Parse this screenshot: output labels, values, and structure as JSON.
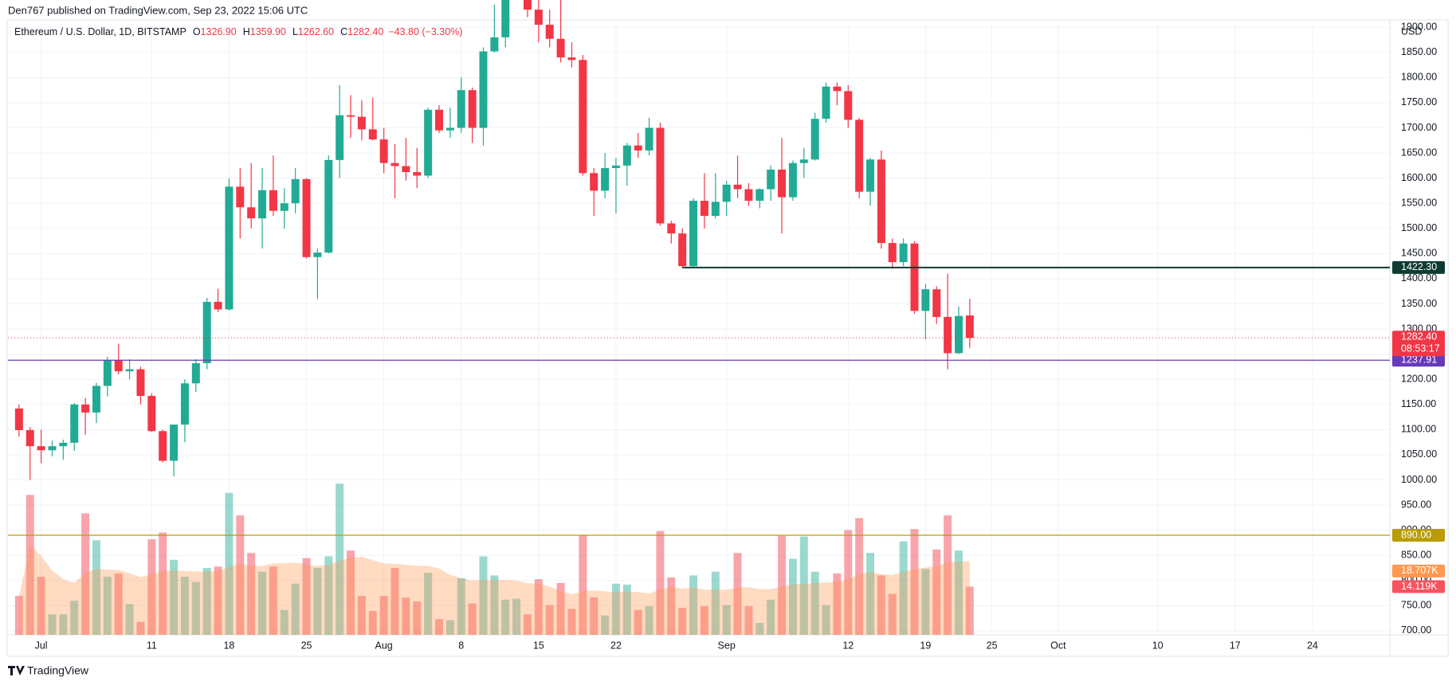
{
  "chart_data": {
    "type": "candlestick",
    "header": "Den767 published on TradingView.com, Sep 23, 2022 15:06 UTC",
    "symbol": "Ethereum / U.S. Dollar, 1D, BITSTAMP",
    "legend": [
      {
        "key": "O",
        "text": "1326.90"
      },
      {
        "key": "H",
        "text": "1359.90"
      },
      {
        "key": "L",
        "text": "1262.60"
      },
      {
        "key": "C",
        "text": "1282.40"
      },
      {
        "key": "",
        "text": "−43.80 (−3.30%)"
      }
    ],
    "currency": "USD",
    "footer": "TradingView",
    "categories": [
      "2022-06-29",
      "2022-06-30",
      "2022-07-01",
      "2022-07-02",
      "2022-07-03",
      "2022-07-04",
      "2022-07-05",
      "2022-07-06",
      "2022-07-07",
      "2022-07-08",
      "2022-07-09",
      "2022-07-10",
      "2022-07-11",
      "2022-07-12",
      "2022-07-13",
      "2022-07-14",
      "2022-07-15",
      "2022-07-16",
      "2022-07-17",
      "2022-07-18",
      "2022-07-19",
      "2022-07-20",
      "2022-07-21",
      "2022-07-22",
      "2022-07-23",
      "2022-07-24",
      "2022-07-25",
      "2022-07-26",
      "2022-07-27",
      "2022-07-28",
      "2022-07-29",
      "2022-07-30",
      "2022-07-31",
      "2022-08-01",
      "2022-08-02",
      "2022-08-03",
      "2022-08-04",
      "2022-08-05",
      "2022-08-06",
      "2022-08-07",
      "2022-08-08",
      "2022-08-09",
      "2022-08-10",
      "2022-08-11",
      "2022-08-12",
      "2022-08-13",
      "2022-08-14",
      "2022-08-15",
      "2022-08-16",
      "2022-08-17",
      "2022-08-18",
      "2022-08-19",
      "2022-08-20",
      "2022-08-21",
      "2022-08-22",
      "2022-08-23",
      "2022-08-24",
      "2022-08-25",
      "2022-08-26",
      "2022-08-27",
      "2022-08-28",
      "2022-08-29",
      "2022-08-30",
      "2022-08-31",
      "2022-09-01",
      "2022-09-02",
      "2022-09-03",
      "2022-09-04",
      "2022-09-05",
      "2022-09-06",
      "2022-09-07",
      "2022-09-08",
      "2022-09-09",
      "2022-09-10",
      "2022-09-11",
      "2022-09-12",
      "2022-09-13",
      "2022-09-14",
      "2022-09-15",
      "2022-09-16",
      "2022-09-17",
      "2022-09-18",
      "2022-09-19",
      "2022-09-20",
      "2022-09-21",
      "2022-09-22",
      "2022-09-23"
    ],
    "open": [
      1142,
      1099,
      1067,
      1059,
      1067,
      1074,
      1150,
      1134,
      1187,
      1238,
      1216,
      1220,
      1167,
      1097,
      1038,
      1110,
      1192,
      1232,
      1354,
      1339,
      1583,
      1542,
      1520,
      1576,
      1535,
      1550,
      1598,
      1443,
      1452,
      1636,
      1725,
      1722,
      1697,
      1677,
      1630,
      1624,
      1612,
      1605,
      1736,
      1695,
      1700,
      1775,
      1700,
      1852,
      1880,
      1958,
      1985,
      1935,
      1905,
      1877,
      1840,
      1835,
      1610,
      1575,
      1620,
      1625,
      1665,
      1655,
      1700,
      1510,
      1490,
      1425,
      1555,
      1525,
      1553,
      1587,
      1578,
      1555,
      1578,
      1617,
      1562,
      1630,
      1637,
      1718,
      1782,
      1773,
      1716,
      1573,
      1637,
      1471,
      1433,
      1470,
      1336,
      1379,
      1324,
      1252,
      1326.9
    ],
    "high": [
      1150,
      1105,
      1100,
      1078,
      1080,
      1153,
      1163,
      1193,
      1245,
      1271,
      1240,
      1225,
      1172,
      1100,
      1110,
      1200,
      1240,
      1362,
      1380,
      1600,
      1620,
      1630,
      1620,
      1645,
      1580,
      1620,
      1600,
      1460,
      1645,
      1785,
      1765,
      1755,
      1760,
      1700,
      1668,
      1680,
      1660,
      1740,
      1745,
      1740,
      1800,
      1780,
      1860,
      1945,
      1960,
      2020,
      2000,
      2010,
      1935,
      1960,
      1870,
      1845,
      1620,
      1650,
      1640,
      1670,
      1690,
      1720,
      1710,
      1515,
      1500,
      1560,
      1610,
      1610,
      1595,
      1645,
      1590,
      1580,
      1625,
      1680,
      1635,
      1660,
      1730,
      1790,
      1790,
      1785,
      1720,
      1640,
      1655,
      1480,
      1480,
      1475,
      1390,
      1385,
      1410,
      1345,
      1359.9
    ],
    "low": [
      1086,
      1000,
      1033,
      1047,
      1040,
      1058,
      1090,
      1113,
      1166,
      1210,
      1200,
      1150,
      1095,
      1035,
      1007,
      1075,
      1175,
      1220,
      1334,
      1337,
      1480,
      1500,
      1460,
      1525,
      1500,
      1530,
      1440,
      1360,
      1450,
      1600,
      1680,
      1675,
      1675,
      1610,
      1560,
      1595,
      1580,
      1600,
      1690,
      1680,
      1690,
      1670,
      1665,
      1850,
      1860,
      1955,
      1920,
      1870,
      1860,
      1830,
      1820,
      1605,
      1525,
      1560,
      1530,
      1585,
      1640,
      1645,
      1505,
      1470,
      1422,
      1422,
      1500,
      1520,
      1525,
      1560,
      1545,
      1540,
      1555,
      1490,
      1555,
      1600,
      1635,
      1710,
      1745,
      1700,
      1560,
      1545,
      1460,
      1420,
      1425,
      1330,
      1280,
      1310,
      1220,
      1250,
      1262.6
    ],
    "close": [
      1099,
      1067,
      1059,
      1067,
      1074,
      1150,
      1134,
      1187,
      1238,
      1216,
      1220,
      1167,
      1097,
      1038,
      1110,
      1192,
      1232,
      1354,
      1339,
      1583,
      1542,
      1520,
      1576,
      1535,
      1550,
      1598,
      1443,
      1452,
      1636,
      1725,
      1722,
      1697,
      1677,
      1630,
      1624,
      1612,
      1605,
      1736,
      1695,
      1700,
      1775,
      1700,
      1852,
      1880,
      1958,
      1985,
      1935,
      1905,
      1877,
      1840,
      1835,
      1610,
      1575,
      1620,
      1625,
      1665,
      1655,
      1700,
      1510,
      1490,
      1425,
      1555,
      1525,
      1553,
      1587,
      1578,
      1555,
      1578,
      1617,
      1562,
      1630,
      1637,
      1718,
      1782,
      1773,
      1716,
      1573,
      1637,
      1471,
      1433,
      1470,
      1336,
      1379,
      1324,
      1252,
      1326,
      1282.4
    ],
    "volume": [
      11.4,
      41,
      17,
      6,
      6,
      10,
      35.6,
      27.7,
      17,
      18,
      9,
      3.8,
      28,
      30,
      22,
      17,
      15.5,
      19.6,
      20,
      41.6,
      35,
      24,
      18.5,
      20,
      7.3,
      15,
      22.5,
      19.6,
      23,
      44.3,
      24.7,
      11.4,
      7,
      11.4,
      19.6,
      10.9,
      9.8,
      18.2,
      4.6,
      4.3,
      16.6,
      9.2,
      23,
      17.4,
      10.3,
      10.6,
      6,
      16.3,
      8.7,
      15.2,
      7.6,
      29.3,
      11,
      5.7,
      15,
      14.7,
      7.3,
      8.4,
      30.4,
      16.8,
      7.9,
      17.4,
      8.4,
      18.5,
      8.7,
      24,
      8.4,
      3.5,
      10.3,
      29,
      22.3,
      28.8,
      18.5,
      8.7,
      18,
      30.7,
      34.2,
      24,
      17.4,
      12,
      27.4,
      31,
      19.3,
      25,
      35,
      24.7,
      14.119
    ],
    "up_color": "#22ab94",
    "down_color": "#f23645",
    "volume_ma_color": "#ff9850",
    "xlim": [
      "2022-06-28",
      "2022-10-31"
    ],
    "xticks": [
      {
        "value": "2022-07-01",
        "label": "Jul"
      },
      {
        "value": "2022-07-11",
        "label": "11"
      },
      {
        "value": "2022-07-18",
        "label": "18"
      },
      {
        "value": "2022-07-25",
        "label": "25"
      },
      {
        "value": "2022-08-01",
        "label": "Aug"
      },
      {
        "value": "2022-08-08",
        "label": "8"
      },
      {
        "value": "2022-08-15",
        "label": "15"
      },
      {
        "value": "2022-08-22",
        "label": "22"
      },
      {
        "value": "2022-09-01",
        "label": "Sep"
      },
      {
        "value": "2022-09-12",
        "label": "12"
      },
      {
        "value": "2022-09-19",
        "label": "19"
      },
      {
        "value": "2022-09-25",
        "label": "25"
      },
      {
        "value": "2022-10-01",
        "label": "Oct"
      },
      {
        "value": "2022-10-10",
        "label": "10"
      },
      {
        "value": "2022-10-17",
        "label": "17"
      },
      {
        "value": "2022-10-24",
        "label": "24"
      }
    ],
    "ylim": [
      692,
      1913
    ],
    "yticks": [
      {
        "value": 700,
        "label": "700.00"
      },
      {
        "value": 750,
        "label": "750.00"
      },
      {
        "value": 800,
        "label": "800.00"
      },
      {
        "value": 850,
        "label": "850.00"
      },
      {
        "value": 900,
        "label": "900.00"
      },
      {
        "value": 950,
        "label": "950.00"
      },
      {
        "value": 1000,
        "label": "1000.00"
      },
      {
        "value": 1050,
        "label": "1050.00"
      },
      {
        "value": 1100,
        "label": "1100.00"
      },
      {
        "value": 1150,
        "label": "1150.00"
      },
      {
        "value": 1200,
        "label": "1200.00"
      },
      {
        "value": 1250,
        "label": "1250.00"
      },
      {
        "value": 1300,
        "label": "1300.00"
      },
      {
        "value": 1350,
        "label": "1350.00"
      },
      {
        "value": 1400,
        "label": "1400.00"
      },
      {
        "value": 1450,
        "label": "1450.00"
      },
      {
        "value": 1500,
        "label": "1500.00"
      },
      {
        "value": 1550,
        "label": "1550.00"
      },
      {
        "value": 1600,
        "label": "1600.00"
      },
      {
        "value": 1650,
        "label": "1650.00"
      },
      {
        "value": 1700,
        "label": "1700.00"
      },
      {
        "value": 1750,
        "label": "1750.00"
      },
      {
        "value": 1800,
        "label": "1800.00"
      },
      {
        "value": 1850,
        "label": "1850.00"
      },
      {
        "value": 1900,
        "label": "1900.00"
      }
    ],
    "volume_lim": [
      0,
      180
    ],
    "grid": true,
    "lines": [
      {
        "value": 1422.3,
        "label": "1422.30",
        "color": "#0d3b32",
        "start": "2022-08-28"
      },
      {
        "value": 1237.91,
        "label": "1237.91",
        "color": "#673ab7"
      },
      {
        "value": 890,
        "label": "890.00",
        "color": "#b89c00"
      }
    ],
    "last_price": {
      "value": 1282.4,
      "label": "1282.40",
      "countdown": "08:53:17",
      "color": "#f23645"
    },
    "volume_labels": [
      {
        "value": 18.707,
        "label": "18.707K",
        "color": "#ff9850"
      },
      {
        "value": 14.119,
        "label": "14.119K",
        "color": "#f7525f"
      }
    ]
  }
}
